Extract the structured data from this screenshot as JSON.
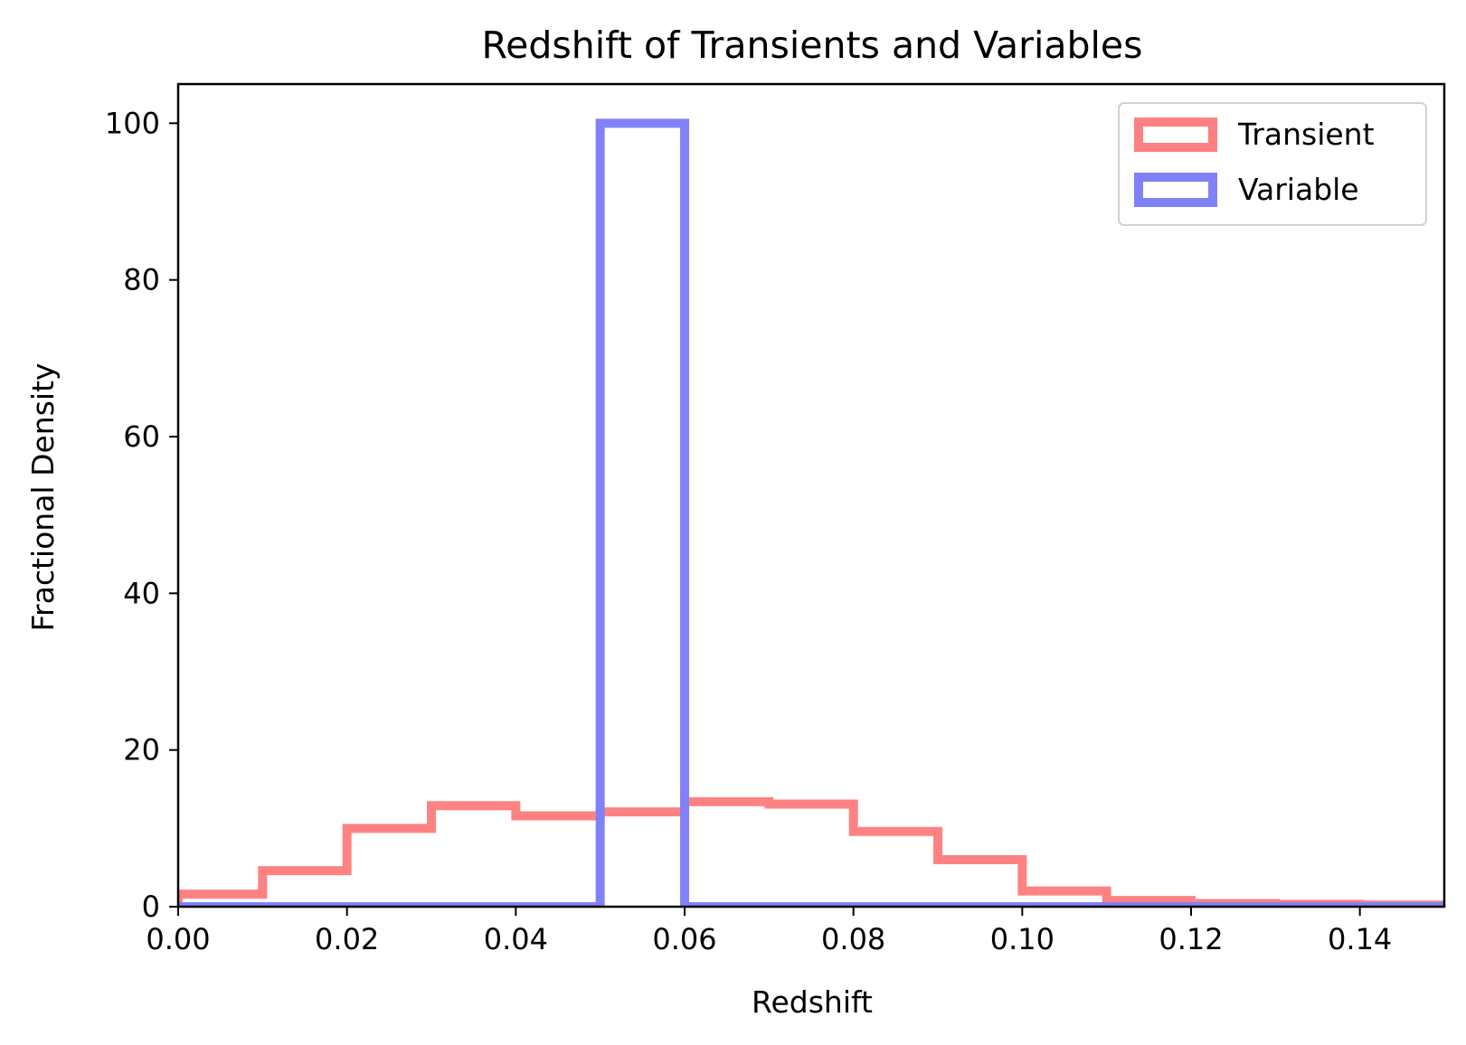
{
  "chart_data": {
    "type": "bar",
    "title": "Redshift of Transients and Variables",
    "xlabel": "Redshift",
    "ylabel": "Fractional Density",
    "xlim": [
      0,
      0.15
    ],
    "ylim": [
      0,
      105
    ],
    "xticks": [
      0.0,
      0.02,
      0.04,
      0.06,
      0.08,
      0.1,
      0.12,
      0.14
    ],
    "xtick_labels": [
      "0.00",
      "0.02",
      "0.04",
      "0.06",
      "0.08",
      "0.10",
      "0.12",
      "0.14"
    ],
    "yticks": [
      0,
      20,
      40,
      60,
      80,
      100
    ],
    "ytick_labels": [
      "0",
      "20",
      "40",
      "60",
      "80",
      "100"
    ],
    "bin_edges": [
      0.0,
      0.01,
      0.02,
      0.03,
      0.04,
      0.05,
      0.06,
      0.07,
      0.08,
      0.09,
      0.1,
      0.11,
      0.12,
      0.13,
      0.14,
      0.15
    ],
    "histtype": "step",
    "grid": false,
    "legend_position": "top-right",
    "series": [
      {
        "name": "Transient",
        "color": "#ff8080",
        "values": [
          1.6,
          4.6,
          10.0,
          12.9,
          11.6,
          12.1,
          13.4,
          13.1,
          9.6,
          6.0,
          2.0,
          0.8,
          0.4,
          0.3,
          0.2
        ]
      },
      {
        "name": "Variable",
        "color": "#8080f8",
        "values": [
          0,
          0,
          0,
          0,
          0,
          100,
          0,
          0,
          0,
          0,
          0,
          0,
          0,
          0,
          0
        ]
      }
    ]
  }
}
